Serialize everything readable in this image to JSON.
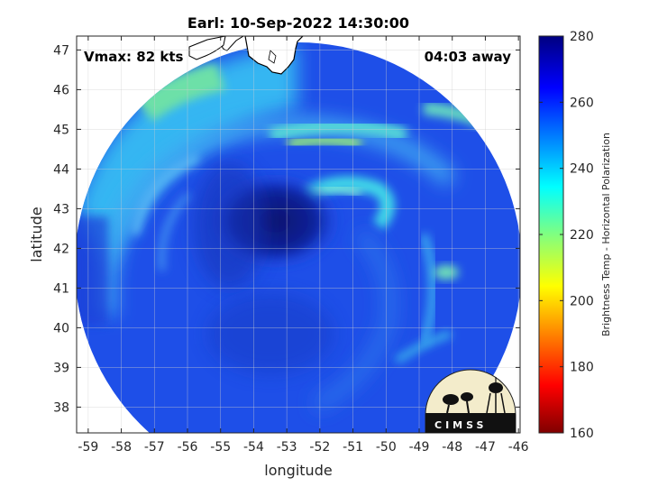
{
  "figure": {
    "title": "Earl: 10-Sep-2022 14:30:00",
    "vmax_text": "Vmax: 82 kts",
    "time_text": "04:03 away",
    "xlabel": "longitude",
    "ylabel": "latitude",
    "colorbar_label": "Brightness Temp - Horizontal Polarization",
    "logo_text": "CIMSS"
  },
  "axes": {
    "x_ticks": [
      -59,
      -58,
      -57,
      -56,
      -55,
      -54,
      -53,
      -52,
      -51,
      -50,
      -49,
      -48,
      -47,
      -46
    ],
    "y_ticks": [
      38,
      39,
      40,
      41,
      42,
      43,
      44,
      45,
      46,
      47
    ],
    "xlim": [
      -59.35,
      -45.95
    ],
    "ylim": [
      37.35,
      47.35
    ],
    "grid": true
  },
  "colorbar": {
    "min": 160,
    "max": 280,
    "ticks": [
      280,
      260,
      240,
      220,
      200,
      180,
      160
    ],
    "colormap": "jet"
  },
  "colors": {
    "land": "#ffffff",
    "land_outline": "#000000",
    "deep_blue": "#0a1e8c",
    "blue": "#1e46e6",
    "cyan": "#2ec8f0",
    "green": "#8ce878"
  }
}
